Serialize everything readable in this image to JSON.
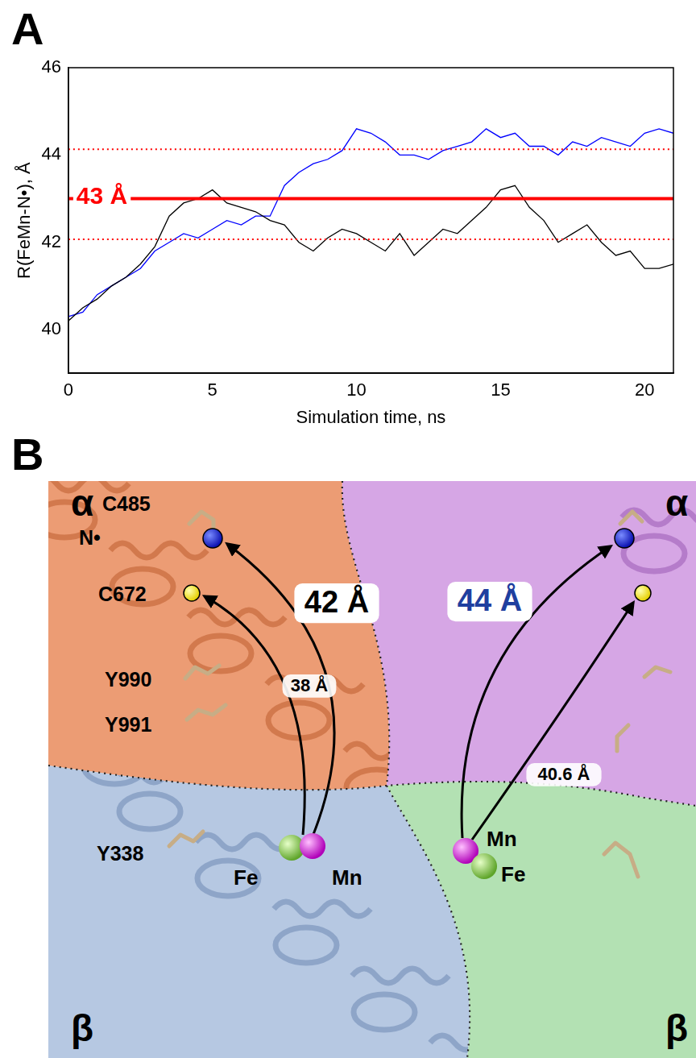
{
  "panel_labels": [
    "A",
    "B"
  ],
  "chart_data": {
    "type": "line",
    "xlabel": "Simulation time, ns",
    "ylabel": "R(FeMn-N•), Å",
    "x": [
      0,
      0.5,
      1,
      1.5,
      2,
      2.5,
      3,
      3.5,
      4,
      4.5,
      5,
      5.5,
      6,
      6.5,
      7,
      7.5,
      8,
      8.5,
      9,
      9.5,
      10,
      10.5,
      11,
      11.5,
      12,
      12.5,
      13,
      13.5,
      14,
      14.5,
      15,
      15.5,
      16,
      16.5,
      17,
      17.5,
      18,
      18.5,
      19,
      19.5,
      20,
      20.5,
      21
    ],
    "series": [
      {
        "color": "#000000",
        "values": [
          40.2,
          40.5,
          40.7,
          41.0,
          41.2,
          41.5,
          41.9,
          42.6,
          42.9,
          43.0,
          43.2,
          42.9,
          42.8,
          42.7,
          42.5,
          42.4,
          42.0,
          41.8,
          42.1,
          42.3,
          42.2,
          42.0,
          41.8,
          42.2,
          41.7,
          42.0,
          42.3,
          42.2,
          42.5,
          42.8,
          43.2,
          43.3,
          42.8,
          42.5,
          42.0,
          42.2,
          42.4,
          42.0,
          41.7,
          41.8,
          41.4,
          41.4,
          41.5
        ]
      },
      {
        "color": "#0000ff",
        "values": [
          40.3,
          40.4,
          40.8,
          41.0,
          41.2,
          41.4,
          41.8,
          42.0,
          42.2,
          42.1,
          42.3,
          42.5,
          42.4,
          42.6,
          42.6,
          43.3,
          43.6,
          43.8,
          43.9,
          44.1,
          44.6,
          44.5,
          44.3,
          44.0,
          44.0,
          43.9,
          44.1,
          44.2,
          44.3,
          44.6,
          44.4,
          44.5,
          44.2,
          44.2,
          44.0,
          44.3,
          44.2,
          44.4,
          44.3,
          44.2,
          44.5,
          44.6,
          44.5
        ]
      }
    ],
    "xlim": [
      0,
      21
    ],
    "ylim": [
      39,
      46
    ],
    "xticks": [
      0,
      5,
      10,
      15,
      20
    ],
    "yticks": [
      40,
      42,
      44,
      46
    ],
    "grid": false,
    "annotations": [
      {
        "label": "43 Å",
        "y": 43,
        "color": "#ff0000",
        "line_style": "solid"
      },
      {
        "y": 42.07,
        "color": "#ff0000",
        "line_style": "dotted"
      },
      {
        "y": 44.13,
        "color": "#ff0000",
        "line_style": "dotted"
      }
    ]
  },
  "diagram": {
    "subunits": [
      "α",
      "α",
      "β",
      "β"
    ],
    "residue_labels": [
      "C485",
      "N•",
      "C672",
      "Y990",
      "Y991",
      "Y338"
    ],
    "metals": [
      "Fe",
      "Mn",
      "Mn",
      "Fe"
    ],
    "distances": [
      {
        "label": "42 Å",
        "color": "#000000"
      },
      {
        "label": "38 Å",
        "color": "#000000"
      },
      {
        "label": "44 Å",
        "color": "#1f3f9f"
      },
      {
        "label": "40.6 Å",
        "color": "#000000"
      }
    ]
  }
}
